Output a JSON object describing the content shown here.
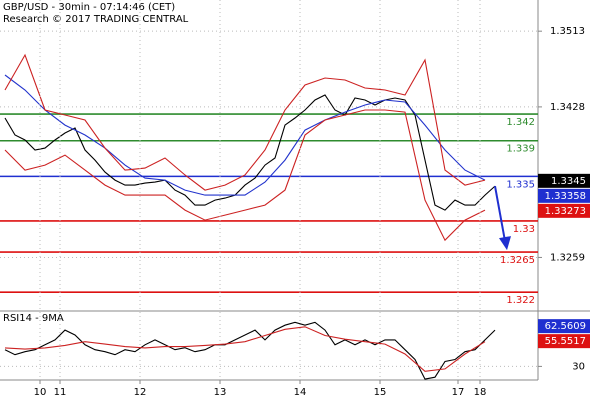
{
  "chart_data": [
    {
      "type": "line",
      "title": "GBP/USD - 30min - 07:14:46 (CET)",
      "subtitle": "Research © 2017 TRADING CENTRAL",
      "xlim": [
        -0.5,
        53.3
      ],
      "ylim": [
        1.32,
        1.3548
      ],
      "yticks": [
        1.3259,
        1.3428,
        1.3513
      ],
      "series": [
        {
          "name": "Price",
          "color": "#000000",
          "x": [
            0,
            1,
            2,
            3,
            4,
            5,
            6,
            7,
            8,
            9,
            10,
            11,
            12,
            13,
            14,
            15,
            16,
            17,
            18,
            19,
            20,
            21,
            22,
            23,
            24,
            25,
            26,
            27,
            28,
            29,
            30,
            31,
            32,
            33,
            34,
            35,
            36,
            37,
            38,
            39,
            40,
            41,
            42,
            43,
            44,
            45,
            46,
            47,
            48,
            49
          ],
          "values": [
            1.34155,
            1.33964,
            1.33908,
            1.33796,
            1.33818,
            1.33908,
            1.33987,
            1.34043,
            1.33796,
            1.33683,
            1.33548,
            1.33458,
            1.33402,
            1.33402,
            1.33425,
            1.33436,
            1.33458,
            1.33346,
            1.3329,
            1.33178,
            1.33178,
            1.33234,
            1.33256,
            1.3329,
            1.33402,
            1.33481,
            1.33627,
            1.33706,
            1.34076,
            1.34155,
            1.34245,
            1.34357,
            1.34413,
            1.34245,
            1.34189,
            1.3438,
            1.34357,
            1.34301,
            1.34357,
            1.3438,
            1.34357,
            1.34189,
            1.33683,
            1.33178,
            1.33121,
            1.33234,
            1.33178,
            1.33178,
            1.3329,
            1.33391
          ]
        },
        {
          "name": "Moving average",
          "color": "#2233cc",
          "x": [
            0,
            2,
            4,
            6,
            8,
            10,
            12,
            14,
            16,
            18,
            20,
            22,
            24,
            26,
            28,
            30,
            32,
            34,
            36,
            38,
            40,
            42,
            44,
            46,
            48
          ],
          "values": [
            1.34638,
            1.3447,
            1.34245,
            1.34076,
            1.33964,
            1.33818,
            1.33627,
            1.33481,
            1.33458,
            1.33346,
            1.3329,
            1.3329,
            1.3329,
            1.33436,
            1.33683,
            1.3402,
            1.34133,
            1.34222,
            1.34301,
            1.34357,
            1.34335,
            1.34076,
            1.33796,
            1.33571,
            1.33458
          ]
        },
        {
          "name": "Upper band",
          "color": "#cc2222",
          "x": [
            0,
            2,
            4,
            6,
            8,
            10,
            12,
            14,
            16,
            18,
            20,
            22,
            24,
            26,
            28,
            30,
            32,
            34,
            36,
            38,
            40,
            42,
            44,
            46,
            48
          ],
          "values": [
            1.3447,
            1.34863,
            1.34245,
            1.34189,
            1.34133,
            1.33818,
            1.33571,
            1.33593,
            1.33706,
            1.33515,
            1.33346,
            1.33402,
            1.33515,
            1.33796,
            1.34245,
            1.34526,
            1.34604,
            1.34582,
            1.34492,
            1.3447,
            1.34413,
            1.34807,
            1.33571,
            1.33402,
            1.33458
          ]
        },
        {
          "name": "Lower band",
          "color": "#cc2222",
          "x": [
            0,
            2,
            4,
            6,
            8,
            10,
            12,
            14,
            16,
            18,
            20,
            22,
            24,
            26,
            28,
            30,
            32,
            34,
            36,
            38,
            40,
            42,
            44,
            46,
            48
          ],
          "values": [
            1.33796,
            1.33571,
            1.33627,
            1.33739,
            1.33571,
            1.33402,
            1.3329,
            1.3329,
            1.3329,
            1.33121,
            1.33009,
            1.33065,
            1.33121,
            1.33178,
            1.33346,
            1.33964,
            1.34133,
            1.34189,
            1.34245,
            1.34245,
            1.34222,
            1.33234,
            1.32784,
            1.33009,
            1.33121
          ]
        }
      ],
      "levels": [
        {
          "value": 1.342,
          "color": "#2e8b2e"
        },
        {
          "value": 1.339,
          "color": "#2e8b2e"
        },
        {
          "value": 1.335,
          "color": "#1f2fd0"
        },
        {
          "value": 1.33,
          "color": "#dd1111"
        },
        {
          "value": 1.3265,
          "color": "#dd1111"
        },
        {
          "value": 1.322,
          "color": "#dd1111"
        }
      ],
      "price_boxes": [
        {
          "value": 1.3345,
          "color": "#000000"
        },
        {
          "value": 1.33358,
          "color": "#1f2fd0"
        },
        {
          "value": 1.33273,
          "color": "#dd1111"
        }
      ]
    },
    {
      "type": "line",
      "title": "RSI14 - 9MA",
      "xlim": [
        -0.5,
        53.3
      ],
      "ylim": [
        19,
        74
      ],
      "yticks": [
        30
      ],
      "xticks": [
        {
          "value": 3.5,
          "label": "10"
        },
        {
          "value": 5.5,
          "label": "11"
        },
        {
          "value": 13.5,
          "label": "12"
        },
        {
          "value": 21.5,
          "label": "13"
        },
        {
          "value": 29.5,
          "label": "14"
        },
        {
          "value": 37.5,
          "label": "15"
        },
        {
          "value": 45.3,
          "label": "17"
        },
        {
          "value": 47.5,
          "label": "18"
        }
      ],
      "series": [
        {
          "name": "RSI14",
          "color": "#000000",
          "x": [
            0,
            1,
            2,
            3,
            4,
            5,
            6,
            7,
            8,
            9,
            10,
            11,
            12,
            13,
            14,
            15,
            16,
            17,
            18,
            19,
            20,
            21,
            22,
            23,
            24,
            25,
            26,
            27,
            28,
            29,
            30,
            31,
            32,
            33,
            34,
            35,
            36,
            37,
            38,
            39,
            40,
            41,
            42,
            43,
            44,
            45,
            46,
            47,
            48,
            49
          ],
          "values": [
            43.5,
            39.5,
            41.9,
            43.5,
            47.5,
            51.4,
            59.4,
            55.4,
            47.5,
            43.5,
            41.9,
            39.5,
            43.5,
            41.9,
            47.5,
            51.4,
            47.5,
            43.5,
            45.1,
            41.9,
            43.5,
            47.5,
            47.5,
            51.4,
            55.4,
            59.4,
            51.4,
            59.4,
            63.3,
            65.7,
            63.3,
            65.7,
            59.4,
            47.5,
            51.4,
            47.5,
            51.4,
            47.5,
            51.4,
            51.4,
            43.5,
            35.6,
            19.7,
            21.3,
            34.0,
            35.6,
            41.9,
            43.5,
            51.4,
            59.4
          ]
        },
        {
          "name": "9MA",
          "color": "#cc2222",
          "x": [
            0,
            2,
            4,
            6,
            8,
            10,
            12,
            14,
            16,
            18,
            20,
            22,
            24,
            26,
            28,
            30,
            32,
            34,
            36,
            38,
            40,
            42,
            44,
            46,
            48
          ],
          "values": [
            45,
            44,
            45,
            47,
            50,
            48,
            46,
            45,
            46,
            46,
            47,
            48,
            50,
            55,
            60,
            62,
            55,
            52,
            50,
            48,
            40,
            26,
            28,
            40,
            50
          ]
        }
      ],
      "price_boxes": [
        {
          "value": 62.5609,
          "color": "#1f2fd0"
        },
        {
          "value": 55.5517,
          "color": "#dd1111"
        }
      ]
    }
  ]
}
